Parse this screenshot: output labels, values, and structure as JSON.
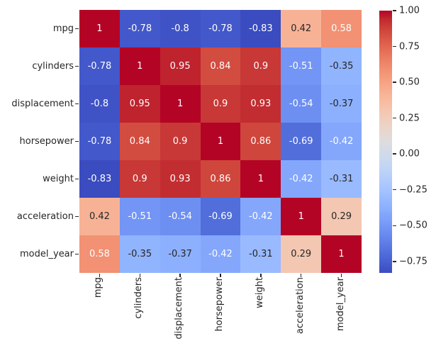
{
  "chart_data": {
    "type": "heatmap",
    "title": "",
    "xlabel": "",
    "ylabel": "",
    "variables": [
      "mpg",
      "cylinders",
      "displacement",
      "horsepower",
      "weight",
      "acceleration",
      "model_year"
    ],
    "matrix": [
      [
        1,
        -0.78,
        -0.8,
        -0.78,
        -0.83,
        0.42,
        0.58
      ],
      [
        -0.78,
        1,
        0.95,
        0.84,
        0.9,
        -0.51,
        -0.35
      ],
      [
        -0.8,
        0.95,
        1,
        0.9,
        0.93,
        -0.54,
        -0.37
      ],
      [
        -0.78,
        0.84,
        0.9,
        1,
        0.86,
        -0.69,
        -0.42
      ],
      [
        -0.83,
        0.9,
        0.93,
        0.86,
        1,
        -0.42,
        -0.31
      ],
      [
        0.42,
        -0.51,
        -0.54,
        -0.69,
        -0.42,
        1,
        0.29
      ],
      [
        0.58,
        -0.35,
        -0.37,
        -0.42,
        -0.31,
        0.29,
        1
      ]
    ],
    "annotations": [
      [
        "1",
        "-0.78",
        "-0.8",
        "-0.78",
        "-0.83",
        "0.42",
        "0.58"
      ],
      [
        "-0.78",
        "1",
        "0.95",
        "0.84",
        "0.9",
        "-0.51",
        "-0.35"
      ],
      [
        "-0.8",
        "0.95",
        "1",
        "0.9",
        "0.93",
        "-0.54",
        "-0.37"
      ],
      [
        "-0.78",
        "0.84",
        "0.9",
        "1",
        "0.86",
        "-0.69",
        "-0.42"
      ],
      [
        "-0.83",
        "0.9",
        "0.93",
        "0.86",
        "1",
        "-0.42",
        "-0.31"
      ],
      [
        "0.42",
        "-0.51",
        "-0.54",
        "-0.69",
        "-0.42",
        "1",
        "0.29"
      ],
      [
        "0.58",
        "-0.35",
        "-0.37",
        "-0.42",
        "-0.31",
        "0.29",
        "1"
      ]
    ],
    "colormap": "coolwarm",
    "vmin": -0.83,
    "vmax": 1.0,
    "colorbar": {
      "tick_labels": [
        "1.00",
        "0.75",
        "0.50",
        "0.25",
        "0.00",
        "−0.25",
        "−0.50",
        "−0.75"
      ],
      "tick_values": [
        1.0,
        0.75,
        0.5,
        0.25,
        0.0,
        -0.25,
        -0.5,
        -0.75
      ],
      "position": "right"
    },
    "legend": "none",
    "grid": false
  },
  "colors": {
    "background": "#ffffff",
    "max_red": "#b40426",
    "mid_gray": "#dddddd",
    "min_blue": "#3b4cc0",
    "tick_text": "#262626",
    "annot_dark": "#262626",
    "annot_light": "#ffffff"
  }
}
